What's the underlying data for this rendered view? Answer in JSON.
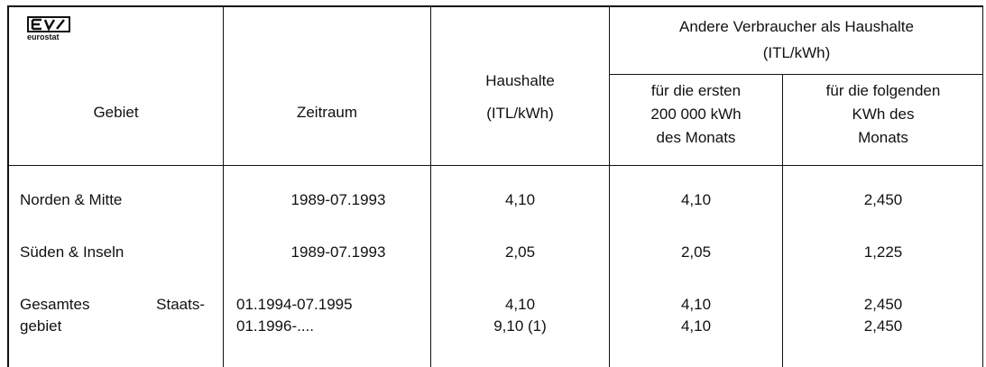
{
  "logo": "eurostat",
  "table": {
    "header": {
      "gebiet": "Gebiet",
      "zeitraum": "Zeitraum",
      "haushalte": [
        "Haushalte",
        "(ITL/kWh)"
      ],
      "andere": [
        "Andere Verbraucher als Haushalte",
        "(ITL/kWh)"
      ],
      "erste": [
        "für die ersten",
        "200 000 kWh",
        "des Monats"
      ],
      "folgende": [
        "für die folgenden",
        "KWh des",
        "Monats"
      ]
    },
    "rows": [
      {
        "gebiet": [
          "Norden & Mitte"
        ],
        "zeitraum": [
          "1989-07.1993"
        ],
        "haushalte": [
          "4,10"
        ],
        "erste": [
          "4,10"
        ],
        "folgende": [
          "2,450"
        ]
      },
      {
        "gebiet": [
          "Süden & Inseln"
        ],
        "zeitraum": [
          "1989-07.1993"
        ],
        "haushalte": [
          "2,05"
        ],
        "erste": [
          "2,05"
        ],
        "folgende": [
          "1,225"
        ]
      },
      {
        "gebiet": [
          "Gesamtes Staats-",
          "gebiet"
        ],
        "zeitraum": [
          "01.1994-07.1995",
          "01.1996-...."
        ],
        "haushalte": [
          "4,10",
          "9,10 (1)"
        ],
        "erste": [
          "4,10",
          "4,10"
        ],
        "folgende": [
          "2,450",
          "2,450"
        ]
      }
    ]
  }
}
